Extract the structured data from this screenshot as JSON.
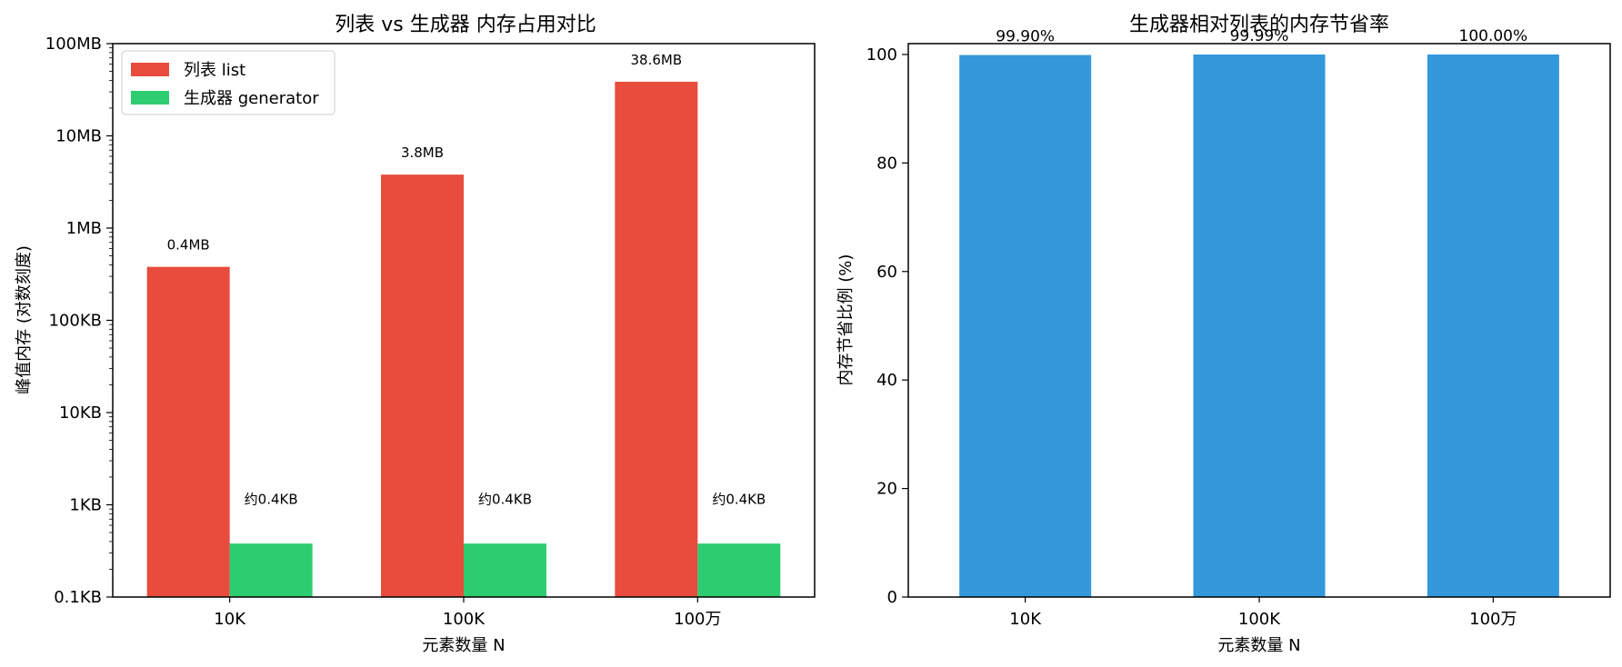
{
  "chart_data": [
    {
      "type": "bar",
      "title": "列表 vs 生成器 内存占用对比",
      "xlabel": "元素数量 N",
      "ylabel": "峰值内存 (对数刻度)",
      "yscale": "log",
      "y_unit": "KB",
      "ylim": [
        0.1,
        100000
      ],
      "categories": [
        "10K",
        "100K",
        "100万"
      ],
      "yticks": [
        {
          "value": 0.1,
          "label": "0.1KB"
        },
        {
          "value": 1,
          "label": "1KB"
        },
        {
          "value": 10,
          "label": "10KB"
        },
        {
          "value": 100,
          "label": "100KB"
        },
        {
          "value": 1000,
          "label": "1MB"
        },
        {
          "value": 10000,
          "label": "10MB"
        },
        {
          "value": 100000,
          "label": "100MB"
        }
      ],
      "series": [
        {
          "name": "列表 list",
          "color": "#e74c3c",
          "values": [
            380,
            3800,
            38600
          ],
          "labels": [
            "0.4MB",
            "3.8MB",
            "38.6MB"
          ]
        },
        {
          "name": "生成器 generator",
          "color": "#2ecc71",
          "values": [
            0.38,
            0.38,
            0.38
          ],
          "labels": [
            "约0.4KB",
            "约0.4KB",
            "约0.4KB"
          ]
        }
      ],
      "legend": "top-left",
      "grid": false
    },
    {
      "type": "bar",
      "title": "生成器相对列表的内存节省率",
      "xlabel": "元素数量 N",
      "ylabel": "内存节省比例 (%)",
      "ylim": [
        0,
        102
      ],
      "categories": [
        "10K",
        "100K",
        "100万"
      ],
      "yticks": [
        {
          "value": 0,
          "label": "0"
        },
        {
          "value": 20,
          "label": "20"
        },
        {
          "value": 40,
          "label": "40"
        },
        {
          "value": 60,
          "label": "60"
        },
        {
          "value": 80,
          "label": "80"
        },
        {
          "value": 100,
          "label": "100"
        }
      ],
      "series": [
        {
          "color": "#3498db",
          "values": [
            99.9,
            99.99,
            100.0
          ],
          "labels": [
            "99.90%",
            "99.99%",
            "100.00%"
          ]
        }
      ],
      "grid": false
    }
  ]
}
